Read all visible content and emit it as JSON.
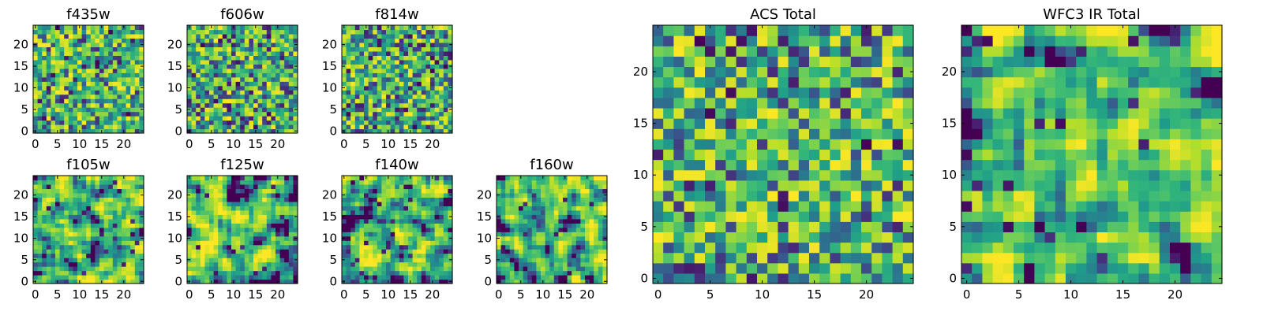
{
  "chart_data": [
    {
      "type": "heatmap",
      "title": "f435w",
      "x_ticks": [
        0,
        5,
        10,
        15,
        20
      ],
      "y_ticks": [
        0,
        5,
        10,
        15,
        20
      ],
      "xlim": [
        -0.5,
        24.5
      ],
      "ylim": [
        -0.5,
        24.5
      ],
      "grid": false,
      "legend": "none",
      "colormap": "viridis",
      "seed": 11,
      "smoothness": 0,
      "grid_size": 25,
      "bias": 0.55
    },
    {
      "type": "heatmap",
      "title": "f606w",
      "x_ticks": [
        0,
        5,
        10,
        15,
        20
      ],
      "y_ticks": [
        0,
        5,
        10,
        15,
        20
      ],
      "xlim": [
        -0.5,
        24.5
      ],
      "ylim": [
        -0.5,
        24.5
      ],
      "grid": false,
      "legend": "none",
      "colormap": "viridis",
      "seed": 23,
      "smoothness": 0,
      "grid_size": 25,
      "bias": 0.5
    },
    {
      "type": "heatmap",
      "title": "f814w",
      "x_ticks": [
        0,
        5,
        10,
        15,
        20
      ],
      "y_ticks": [
        0,
        5,
        10,
        15,
        20
      ],
      "xlim": [
        -0.5,
        24.5
      ],
      "ylim": [
        -0.5,
        24.5
      ],
      "grid": false,
      "legend": "none",
      "colormap": "viridis",
      "seed": 37,
      "smoothness": 0,
      "grid_size": 25,
      "bias": 0.45
    },
    {
      "type": "heatmap",
      "title": "f105w",
      "x_ticks": [
        0,
        5,
        10,
        15,
        20
      ],
      "y_ticks": [
        0,
        5,
        10,
        15,
        20
      ],
      "xlim": [
        -0.5,
        24.5
      ],
      "ylim": [
        -0.5,
        24.5
      ],
      "grid": false,
      "legend": "none",
      "colormap": "viridis",
      "seed": 41,
      "smoothness": 1,
      "grid_size": 25,
      "bias": 0.6
    },
    {
      "type": "heatmap",
      "title": "f125w",
      "x_ticks": [
        0,
        5,
        10,
        15,
        20
      ],
      "y_ticks": [
        0,
        5,
        10,
        15,
        20
      ],
      "xlim": [
        -0.5,
        24.5
      ],
      "ylim": [
        -0.5,
        24.5
      ],
      "grid": false,
      "legend": "none",
      "colormap": "viridis",
      "seed": 53,
      "smoothness": 1,
      "grid_size": 25,
      "bias": 0.65
    },
    {
      "type": "heatmap",
      "title": "f140w",
      "x_ticks": [
        0,
        5,
        10,
        15,
        20
      ],
      "y_ticks": [
        0,
        5,
        10,
        15,
        20
      ],
      "xlim": [
        -0.5,
        24.5
      ],
      "ylim": [
        -0.5,
        24.5
      ],
      "grid": false,
      "legend": "none",
      "colormap": "viridis",
      "seed": 67,
      "smoothness": 1,
      "grid_size": 25,
      "bias": 0.55
    },
    {
      "type": "heatmap",
      "title": "f160w",
      "x_ticks": [
        0,
        5,
        10,
        15,
        20
      ],
      "y_ticks": [
        0,
        5,
        10,
        15,
        20
      ],
      "xlim": [
        -0.5,
        24.5
      ],
      "ylim": [
        -0.5,
        24.5
      ],
      "grid": false,
      "legend": "none",
      "colormap": "viridis",
      "seed": 79,
      "smoothness": 1,
      "grid_size": 25,
      "bias": 0.62
    },
    {
      "type": "heatmap",
      "title": "ACS Total",
      "x_ticks": [
        0,
        5,
        10,
        15,
        20
      ],
      "y_ticks": [
        0,
        5,
        10,
        15,
        20
      ],
      "xlim": [
        -0.5,
        24.5
      ],
      "ylim": [
        -0.5,
        24.5
      ],
      "grid": false,
      "legend": "none",
      "colormap": "viridis",
      "seed": 97,
      "smoothness": 0,
      "grid_size": 25,
      "bias": 0.55
    },
    {
      "type": "heatmap",
      "title": "WFC3 IR Total",
      "x_ticks": [
        0,
        5,
        10,
        15,
        20
      ],
      "y_ticks": [
        0,
        5,
        10,
        15,
        20
      ],
      "xlim": [
        -0.5,
        24.5
      ],
      "ylim": [
        -0.5,
        24.5
      ],
      "grid": false,
      "legend": "none",
      "colormap": "viridis",
      "seed": 113,
      "smoothness": 1,
      "grid_size": 25,
      "bias": 0.62
    }
  ]
}
